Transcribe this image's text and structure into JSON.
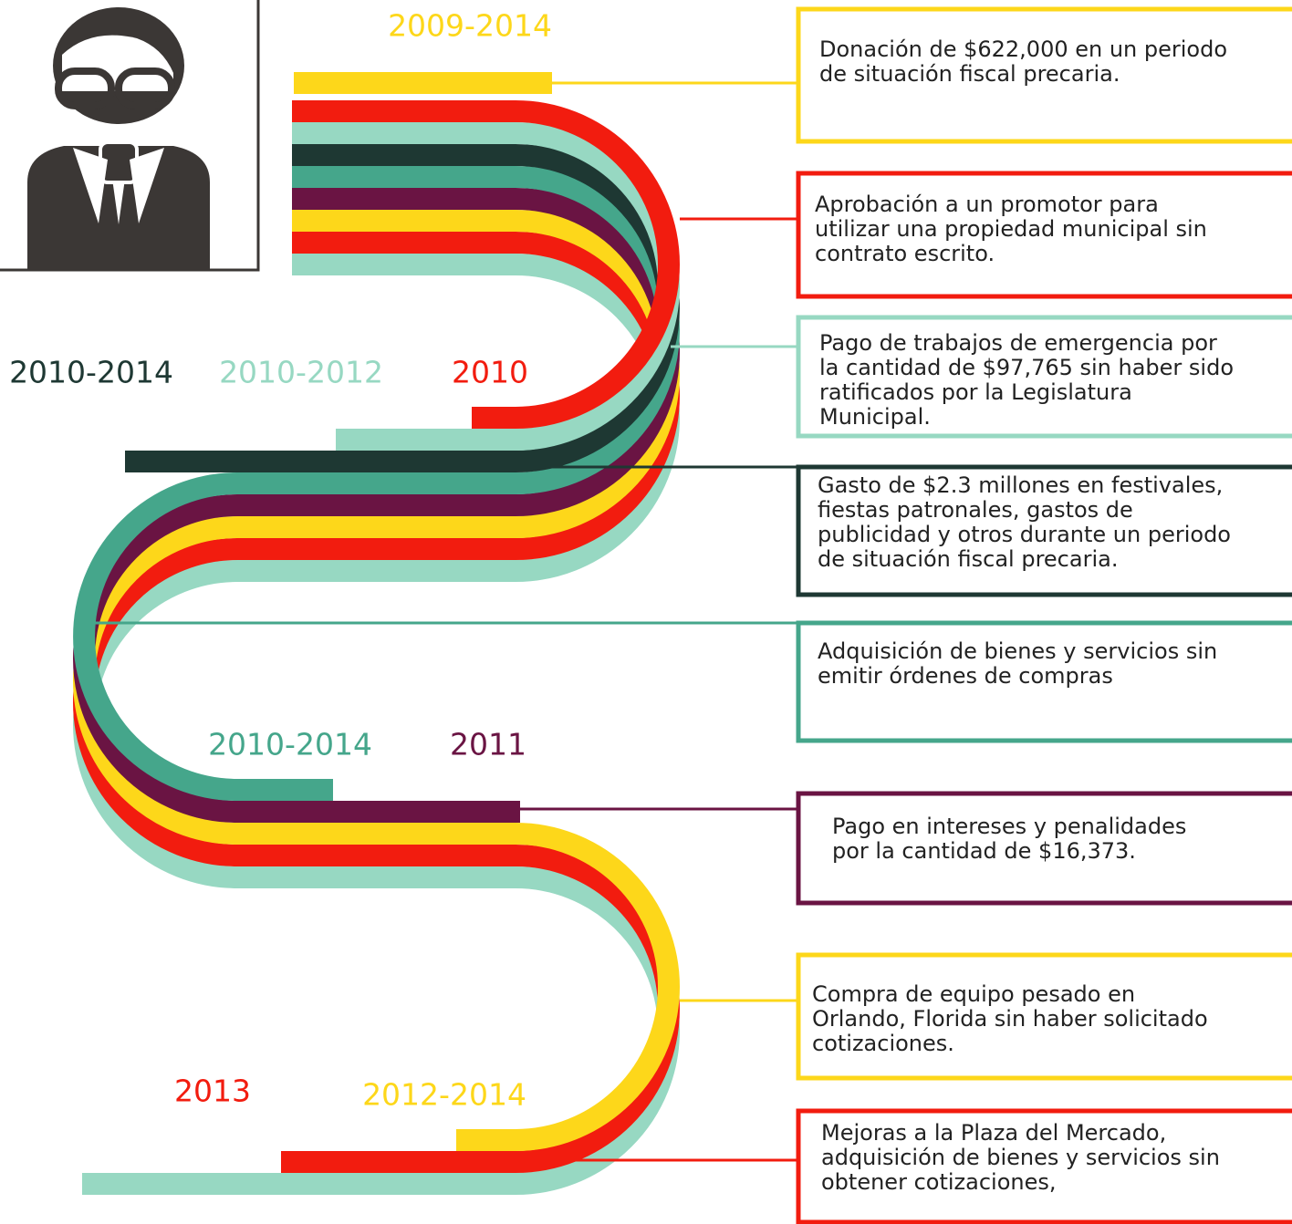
{
  "timeline": [
    {
      "period": "2009-2014",
      "color": "#fdd71a",
      "text_lines": [
        "Donación de $622,000 en un periodo",
        "de situación fiscal precaria."
      ]
    },
    {
      "period": "2010",
      "color": "#f21c0f",
      "text_lines": [
        "Aprobación a un promotor  para",
        "utilizar una propiedad municipal sin",
        "contrato escrito."
      ]
    },
    {
      "period": "2010-2012",
      "color": "#97d8c2",
      "text_lines": [
        "Pago de trabajos de emergencia por",
        "la cantidad de $97,765 sin haber sido",
        "ratificados por la Legislatura",
        "Municipal."
      ]
    },
    {
      "period": "2010-2014",
      "color": "#1e3833",
      "text_lines": [
        "Gasto de $2.3 millones en festivales,",
        "fiestas patronales, gastos de",
        "publicidad y otros durante un periodo",
        "de situación fiscal precaria."
      ]
    },
    {
      "period": "2010-2014",
      "color": "#45a68b",
      "text_lines": [
        "Adquisición de bienes y servicios sin",
        "emitir órdenes de compras"
      ]
    },
    {
      "period": "2011",
      "color": "#6a1443",
      "text_lines": [
        "Pago en intereses y penalidades",
        "por la cantidad de $16,373."
      ]
    },
    {
      "period": "2012-2014",
      "color": "#fdd71a",
      "text_lines": [
        "Compra de equipo pesado en",
        "Orlando, Florida sin haber solicitado",
        "cotizaciones."
      ]
    },
    {
      "period": "2013",
      "color": "#f21c0f",
      "text_lines": [
        "Mejoras a la Plaza del Mercado,",
        "adquisición de bienes y servicios sin",
        "obtener cotizaciones,"
      ]
    }
  ]
}
